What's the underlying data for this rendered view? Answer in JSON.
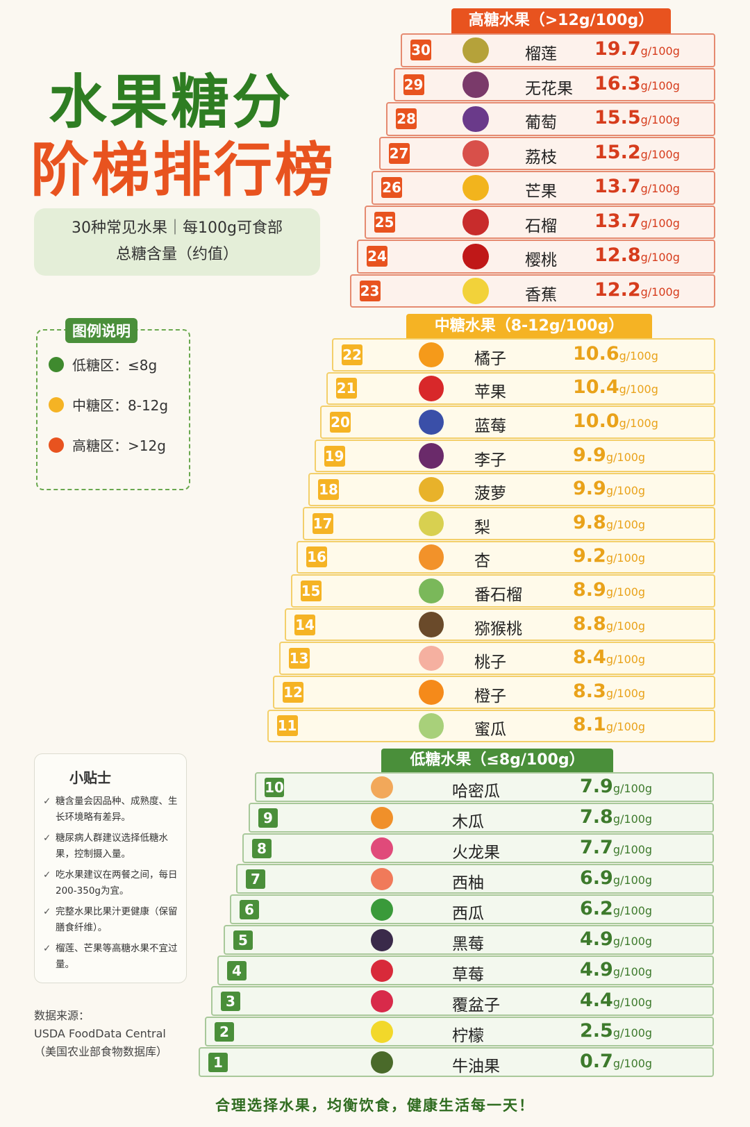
{
  "title_line1": "水果糖分",
  "title_line2": "阶梯排行榜",
  "subtitle_line1": "30种常见水果｜每100g可食部",
  "subtitle_line2": "总糖含量（约值）",
  "legend": {
    "title": "图例说明",
    "items": [
      "低糖区：≤8g",
      "中糖区：8-12g",
      "高糖区：>12g"
    ]
  },
  "unit": "g/100g",
  "sections": [
    {
      "title": "高糖水果（>12g/100g）",
      "rows": [
        {
          "rank": 30,
          "name": "榴莲",
          "value": "19.7"
        },
        {
          "rank": 29,
          "name": "无花果",
          "value": "16.3"
        },
        {
          "rank": 28,
          "name": "葡萄",
          "value": "15.5"
        },
        {
          "rank": 27,
          "name": "荔枝",
          "value": "15.2"
        },
        {
          "rank": 26,
          "name": "芒果",
          "value": "13.7"
        },
        {
          "rank": 25,
          "name": "石榴",
          "value": "13.7"
        },
        {
          "rank": 24,
          "name": "樱桃",
          "value": "12.8"
        },
        {
          "rank": 23,
          "name": "香蕉",
          "value": "12.2"
        }
      ]
    },
    {
      "title": "中糖水果（8-12g/100g）",
      "rows": [
        {
          "rank": 22,
          "name": "橘子",
          "value": "10.6"
        },
        {
          "rank": 21,
          "name": "苹果",
          "value": "10.4"
        },
        {
          "rank": 20,
          "name": "蓝莓",
          "value": "10.0"
        },
        {
          "rank": 19,
          "name": "李子",
          "value": "9.9"
        },
        {
          "rank": 18,
          "name": "菠萝",
          "value": "9.9"
        },
        {
          "rank": 17,
          "name": "梨",
          "value": "9.8"
        },
        {
          "rank": 16,
          "name": "杏",
          "value": "9.2"
        },
        {
          "rank": 15,
          "name": "番石榴",
          "value": "8.9"
        },
        {
          "rank": 14,
          "name": "猕猴桃",
          "value": "8.8"
        },
        {
          "rank": 13,
          "name": "桃子",
          "value": "8.4"
        },
        {
          "rank": 12,
          "name": "橙子",
          "value": "8.3"
        },
        {
          "rank": 11,
          "name": "蜜瓜",
          "value": "8.1"
        }
      ]
    },
    {
      "title": "低糖水果（≤8g/100g）",
      "rows": [
        {
          "rank": 10,
          "name": "哈密瓜",
          "value": "7.9"
        },
        {
          "rank": 9,
          "name": "木瓜",
          "value": "7.8"
        },
        {
          "rank": 8,
          "name": "火龙果",
          "value": "7.7"
        },
        {
          "rank": 7,
          "name": "西柚",
          "value": "6.9"
        },
        {
          "rank": 6,
          "name": "西瓜",
          "value": "6.2"
        },
        {
          "rank": 5,
          "name": "黑莓",
          "value": "4.9"
        },
        {
          "rank": 4,
          "name": "草莓",
          "value": "4.9"
        },
        {
          "rank": 3,
          "name": "覆盆子",
          "value": "4.4"
        },
        {
          "rank": 2,
          "name": "柠檬",
          "value": "2.5"
        },
        {
          "rank": 1,
          "name": "牛油果",
          "value": "0.7"
        }
      ]
    }
  ],
  "tips": {
    "title": "小贴士",
    "items": [
      "糖含量会因品种、成熟度、生长环境略有差异。",
      "糖尿病人群建议选择低糖水果，控制摄入量。",
      "吃水果建议在两餐之间，每日200-350g为宜。",
      "完整水果比果汁更健康（保留膳食纤维）。",
      "榴莲、芒果等高糖水果不宜过量。"
    ]
  },
  "source": {
    "label": "数据来源：",
    "lines": [
      "USDA FoodData Central",
      "（美国农业部食物数据库）"
    ]
  },
  "footer": "合理选择水果，均衡饮食，健康生活每一天！"
}
